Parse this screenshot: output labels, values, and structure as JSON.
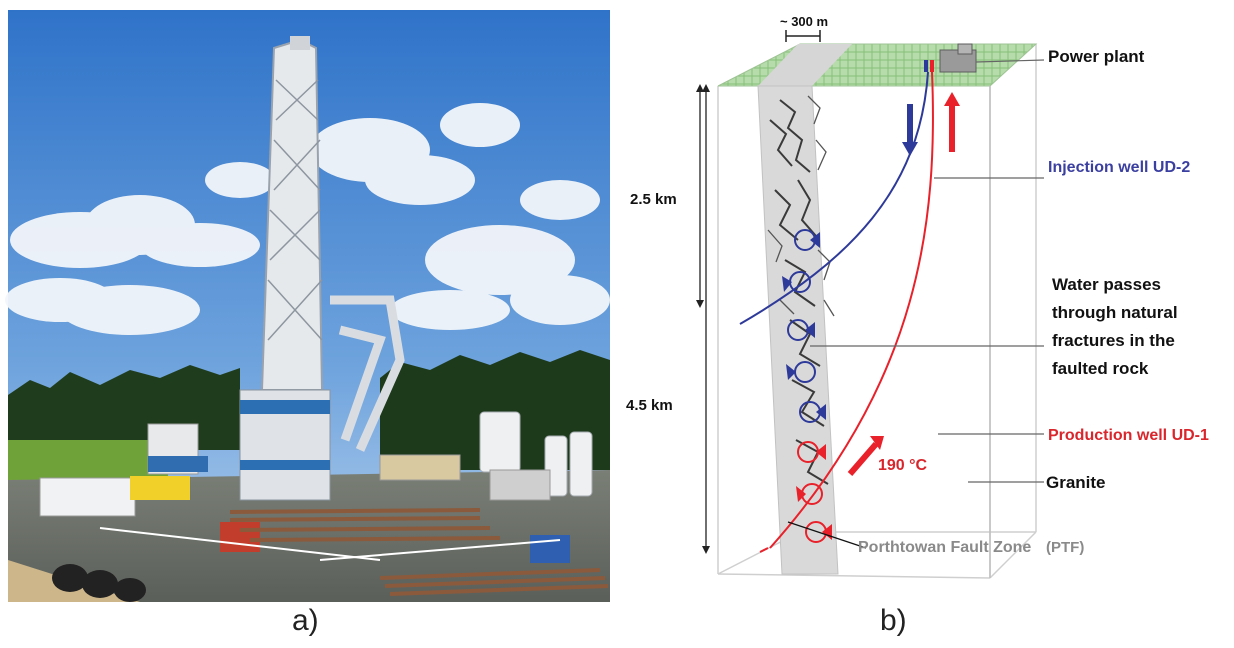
{
  "panel_a": {
    "caption": "a)"
  },
  "panel_b": {
    "caption": "b)",
    "scale_label": "~ 300 m",
    "depth_shallow": "2.5 km",
    "depth_deep": "4.5 km",
    "labels": {
      "power_plant": "Power plant",
      "injection_well": "Injection well UD-2",
      "water_line1": "Water passes",
      "water_line2": "through natural",
      "water_line3": "fractures in the",
      "water_line4": "faulted rock",
      "production_well": "Production well UD-1",
      "temperature": "190 °C",
      "granite": "Granite",
      "fault_zone": "Porthtowan Fault Zone",
      "fault_zone_abbr": "(PTF)"
    },
    "colors": {
      "injection": "#2e3a9a",
      "production": "#e8212a",
      "surface": "#a9d6a0",
      "fault": "#d3d3d3",
      "label_gray": "#8a8a8a"
    }
  }
}
